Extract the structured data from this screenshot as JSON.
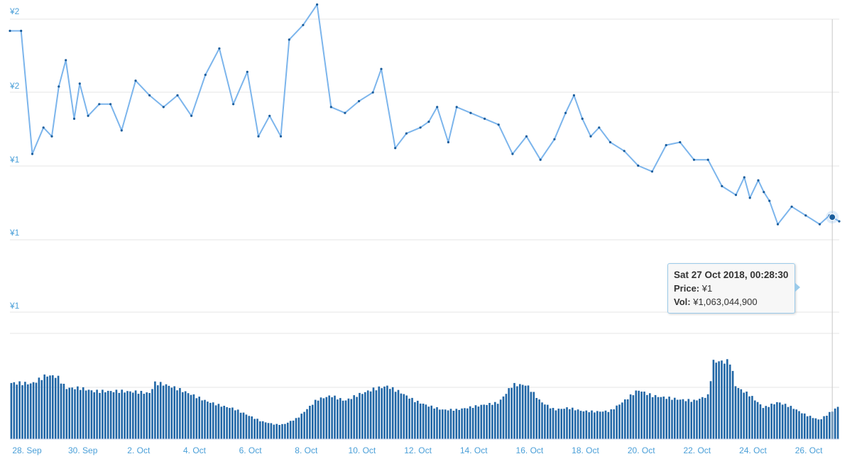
{
  "chart_data": {
    "type": "line",
    "colors": {
      "line": "#7cb5ec",
      "marker": "#1a5d9c",
      "volume": "#2066a6",
      "axis_label": "#4a9fd8",
      "grid": "#e6e6e6"
    },
    "y_tick_labels": [
      "¥2",
      "¥2",
      "¥1",
      "¥1",
      "¥1"
    ],
    "x_tick_labels": [
      "28. Sep",
      "30. Sep",
      "2. Oct",
      "4. Oct",
      "6. Oct",
      "8. Oct",
      "10. Oct",
      "12. Oct",
      "14. Oct",
      "16. Oct",
      "18. Oct",
      "20. Oct",
      "22. Oct",
      "24. Oct",
      "26. Oct"
    ],
    "price_axis_range": [
      1.0,
      2.0
    ],
    "x_range_days": [
      0,
      29.7
    ],
    "price_series": {
      "x_days": [
        0,
        0.4,
        0.8,
        1.2,
        1.5,
        1.75,
        2,
        2.3,
        2.5,
        2.8,
        3.2,
        3.6,
        4,
        4.5,
        5,
        5.5,
        6,
        6.5,
        7,
        7.5,
        8,
        8.5,
        8.9,
        9.3,
        9.7,
        10,
        10.5,
        11,
        11.5,
        12,
        12.5,
        13,
        13.3,
        13.8,
        14.2,
        14.7,
        15,
        15.3,
        15.7,
        16,
        16.5,
        17,
        17.5,
        18,
        18.5,
        19,
        19.5,
        19.9,
        20.2,
        20.5,
        20.8,
        21.1,
        21.5,
        22,
        22.5,
        23,
        23.5,
        24,
        24.5,
        25,
        25.5,
        26,
        26.3,
        26.5,
        26.8,
        27,
        27.2,
        27.5,
        28,
        28.5,
        29,
        29.35,
        29.7
      ],
      "price": [
        1.96,
        1.96,
        1.54,
        1.63,
        1.6,
        1.77,
        1.86,
        1.66,
        1.78,
        1.67,
        1.71,
        1.71,
        1.62,
        1.79,
        1.74,
        1.7,
        1.74,
        1.67,
        1.81,
        1.9,
        1.71,
        1.82,
        1.6,
        1.67,
        1.6,
        1.93,
        1.98,
        2.05,
        1.7,
        1.68,
        1.72,
        1.75,
        1.83,
        1.56,
        1.61,
        1.63,
        1.65,
        1.7,
        1.58,
        1.7,
        1.68,
        1.66,
        1.64,
        1.54,
        1.6,
        1.52,
        1.59,
        1.68,
        1.74,
        1.66,
        1.6,
        1.63,
        1.58,
        1.55,
        1.5,
        1.48,
        1.57,
        1.58,
        1.52,
        1.52,
        1.43,
        1.4,
        1.46,
        1.39,
        1.45,
        1.41,
        1.38,
        1.3,
        1.36,
        1.33,
        1.3,
        1.33,
        1.31
      ]
    },
    "volume_series": {
      "x_days": [
        0,
        0.8,
        1.3,
        1.7,
        2,
        2.5,
        3,
        3.5,
        4,
        4.5,
        5,
        5.2,
        5.5,
        6,
        6.5,
        7,
        7.5,
        8,
        8.5,
        9,
        9.5,
        9.8,
        10.3,
        11,
        11.5,
        12,
        12.5,
        13,
        13.5,
        14,
        14.5,
        15,
        15.5,
        16,
        16.5,
        17,
        17.5,
        18,
        18.5,
        19,
        19.5,
        20,
        20.5,
        21,
        21.5,
        22,
        22.5,
        23,
        23.5,
        24,
        24.5,
        25,
        25.2,
        25.8,
        26,
        26.5,
        27,
        27.5,
        28,
        28.5,
        29,
        29.7
      ],
      "volume": [
        0.88,
        0.87,
        1.0,
        0.98,
        0.8,
        0.8,
        0.75,
        0.75,
        0.75,
        0.74,
        0.72,
        0.88,
        0.86,
        0.79,
        0.7,
        0.6,
        0.53,
        0.48,
        0.38,
        0.28,
        0.23,
        0.23,
        0.33,
        0.62,
        0.68,
        0.6,
        0.7,
        0.78,
        0.83,
        0.73,
        0.6,
        0.52,
        0.46,
        0.46,
        0.5,
        0.54,
        0.57,
        0.85,
        0.85,
        0.59,
        0.46,
        0.49,
        0.44,
        0.43,
        0.44,
        0.6,
        0.77,
        0.68,
        0.65,
        0.62,
        0.6,
        0.68,
        1.22,
        1.21,
        0.82,
        0.69,
        0.49,
        0.58,
        0.5,
        0.38,
        0.3,
        0.52
      ]
    },
    "tooltip": {
      "date": "Sat 27 Oct 2018, 00:28:30",
      "price_label": "Price:",
      "price_value": "¥1",
      "vol_label": "Vol:",
      "vol_value": "¥1,063,044,900",
      "x_day": 29.45
    }
  }
}
